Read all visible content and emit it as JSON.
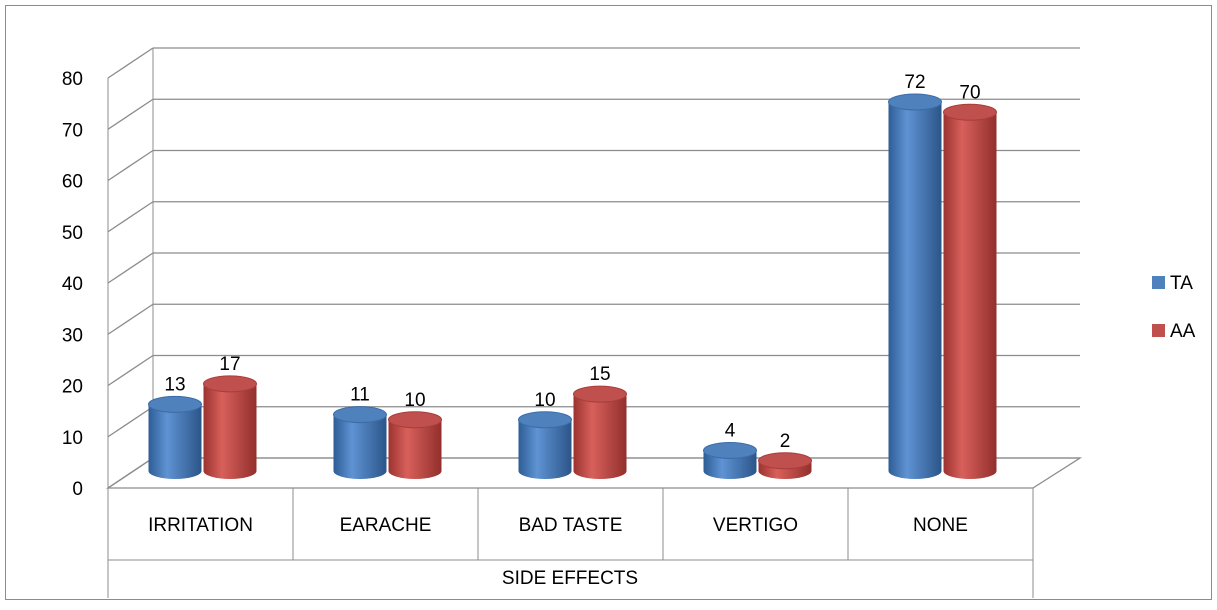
{
  "chart_data": {
    "type": "bar",
    "categories": [
      "IRRITATION",
      "EARACHE",
      "BAD TASTE",
      "VERTIGO",
      "NONE"
    ],
    "series": [
      {
        "name": "TA",
        "color": "#4F81BD",
        "values": [
          13,
          11,
          10,
          4,
          72
        ]
      },
      {
        "name": "AA",
        "color": "#C0504D",
        "values": [
          17,
          10,
          15,
          2,
          70
        ]
      }
    ],
    "xlabel": "SIDE EFFECTS",
    "ylim": [
      0,
      80
    ],
    "yticks": [
      0,
      10,
      20,
      30,
      40,
      50,
      60,
      70,
      80
    ],
    "grid": true,
    "legend": "right",
    "style": "3d-cylinder"
  }
}
